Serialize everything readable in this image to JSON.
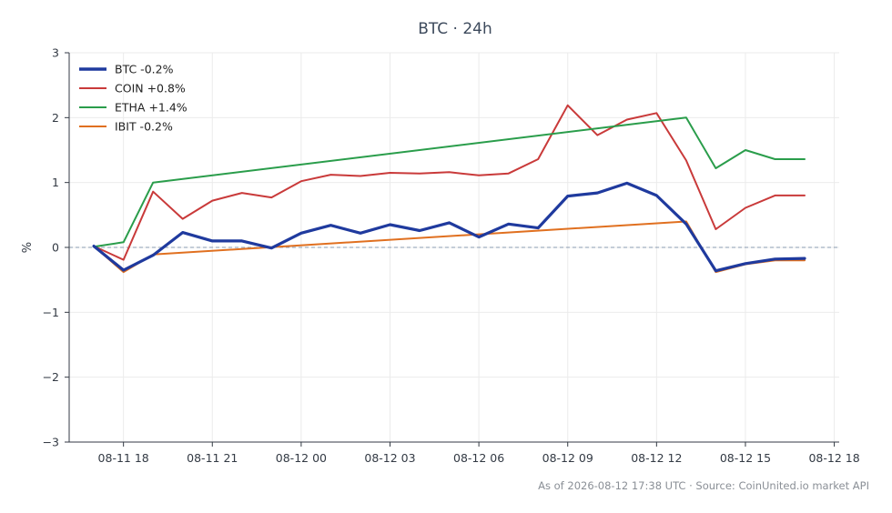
{
  "chart_data": {
    "type": "line",
    "title": "BTC · 24h",
    "xlabel": "",
    "ylabel": "%",
    "ylim": [
      -3,
      3
    ],
    "xlim": [
      "2026-08-11 16:10",
      "2026-08-12 18:10"
    ],
    "yticks": [
      3,
      2,
      1,
      0,
      -1,
      -2,
      -3
    ],
    "ytick_labels": [
      "3",
      "2",
      "1",
      "0",
      "−1",
      "−2",
      "−3"
    ],
    "xticks": [
      "2026-08-11 18:00",
      "2026-08-11 21:00",
      "2026-08-12 00:00",
      "2026-08-12 03:00",
      "2026-08-12 06:00",
      "2026-08-12 09:00",
      "2026-08-12 12:00",
      "2026-08-12 15:00",
      "2026-08-12 18:00"
    ],
    "xtick_labels": [
      "08-11 18",
      "08-11 21",
      "08-12 00",
      "08-12 03",
      "08-12 06",
      "08-12 09",
      "08-12 12",
      "08-12 15",
      "08-12 18"
    ],
    "grid": true,
    "zero_line": true,
    "legend_position": "top-left",
    "x": [
      "2026-08-11 17:00",
      "2026-08-11 18:00",
      "2026-08-11 19:00",
      "2026-08-11 20:00",
      "2026-08-11 21:00",
      "2026-08-11 22:00",
      "2026-08-11 23:00",
      "2026-08-12 00:00",
      "2026-08-12 01:00",
      "2026-08-12 02:00",
      "2026-08-12 03:00",
      "2026-08-12 04:00",
      "2026-08-12 05:00",
      "2026-08-12 06:00",
      "2026-08-12 07:00",
      "2026-08-12 08:00",
      "2026-08-12 09:00",
      "2026-08-12 10:00",
      "2026-08-12 11:00",
      "2026-08-12 12:00",
      "2026-08-12 13:00",
      "2026-08-12 14:00",
      "2026-08-12 15:00",
      "2026-08-12 16:00",
      "2026-08-12 17:00"
    ],
    "series": [
      {
        "name": "BTC -0.2%",
        "color": "#1f3a9e",
        "width": "thick",
        "values": [
          0.02,
          -0.35,
          -0.12,
          0.23,
          0.1,
          0.1,
          -0.01,
          0.22,
          0.34,
          0.22,
          0.35,
          0.26,
          0.38,
          0.16,
          0.36,
          0.3,
          0.79,
          0.84,
          0.99,
          0.8,
          0.36,
          -0.36,
          -0.25,
          -0.18,
          -0.17
        ]
      },
      {
        "name": "COIN +0.8%",
        "color": "#c93a3a",
        "width": "normal",
        "values": [
          0.02,
          -0.19,
          0.86,
          0.44,
          0.72,
          0.84,
          0.77,
          1.02,
          1.12,
          1.1,
          1.15,
          1.14,
          1.16,
          1.11,
          1.14,
          1.36,
          2.19,
          1.73,
          1.97,
          2.07,
          1.34,
          0.28,
          0.61,
          0.8,
          0.8
        ]
      },
      {
        "name": "ETHA +1.4%",
        "color": "#2a9d4b",
        "width": "normal",
        "values": [
          0.01,
          0.08,
          1.0,
          null,
          null,
          null,
          null,
          null,
          null,
          null,
          null,
          null,
          null,
          null,
          null,
          null,
          null,
          null,
          null,
          null,
          2.0,
          1.22,
          1.5,
          1.36,
          1.36
        ]
      },
      {
        "name": "IBIT -0.2%",
        "color": "#e07020",
        "width": "normal",
        "values": [
          0.02,
          -0.38,
          -0.11,
          null,
          null,
          null,
          null,
          null,
          null,
          null,
          null,
          null,
          null,
          null,
          null,
          null,
          null,
          null,
          null,
          null,
          0.4,
          -0.38,
          -0.26,
          -0.2,
          -0.2
        ]
      }
    ]
  },
  "footnote": "As of 2026-08-12 17:38 UTC · Source: CoinUnited.io market API"
}
